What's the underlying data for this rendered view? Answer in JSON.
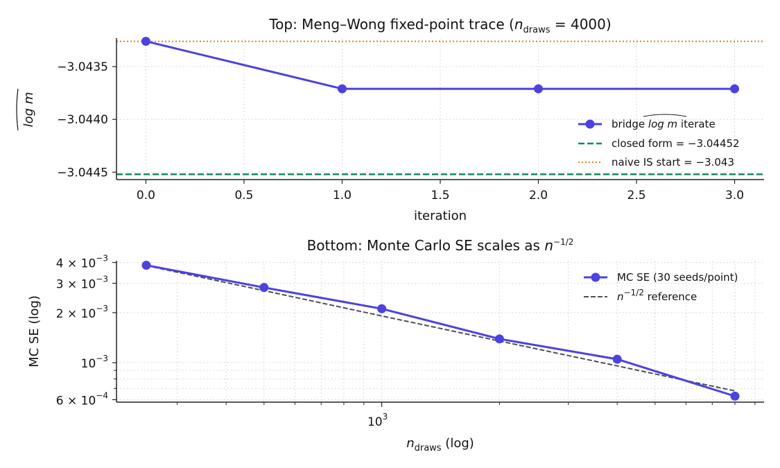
{
  "figure": {
    "colors": {
      "series": "#4b42e0",
      "closed_form": "#0f8a62",
      "naive": "#d4841c",
      "reference": "#4a4f58",
      "grid": "#d9d9d9",
      "axis": "#222222"
    }
  },
  "chart_data": [
    {
      "id": "top",
      "type": "line",
      "title": {
        "prefix": "Top: Meng–Wong fixed-point trace  (",
        "symbol": "n",
        "subscript": "draws",
        "suffix": " = 4000)"
      },
      "xlabel": "iteration",
      "ylabel": "log m",
      "xlim": [
        -0.15,
        3.15
      ],
      "ylim": [
        -3.04457,
        -3.04323
      ],
      "xticks": [
        0.0,
        0.5,
        1.0,
        1.5,
        2.0,
        2.5,
        3.0
      ],
      "xtick_labels": [
        "0.0",
        "0.5",
        "1.0",
        "1.5",
        "2.0",
        "2.5",
        "3.0"
      ],
      "yticks": [
        -3.0435,
        -3.044,
        -3.0445
      ],
      "ytick_labels": [
        "−3.0435",
        "−3.0440",
        "−3.0445"
      ],
      "grid": true,
      "legend_position": "center-right",
      "series": [
        {
          "name": "bridge log m iterate",
          "style": "solid-markers",
          "x": [
            0,
            1,
            2,
            3
          ],
          "y": [
            -3.04326,
            -3.04371,
            -3.04371,
            -3.04371
          ]
        }
      ],
      "hlines": [
        {
          "name": "closed form",
          "value": -3.04452,
          "label": "closed form  = −3.04452",
          "style": "dashed"
        },
        {
          "name": "naive IS start",
          "value": -3.04326,
          "label": "naive IS start  = −3.043",
          "style": "dotted"
        }
      ],
      "legend": {
        "series_label_prefix": "bridge ",
        "series_label_suffix": " iterate"
      }
    },
    {
      "id": "bottom",
      "type": "line",
      "title": {
        "prefix": "Bottom: Monte Carlo SE scales as ",
        "symbol": "n",
        "superscript": "−1/2"
      },
      "xlabel": {
        "symbol": "n",
        "subscript": "draws",
        "suffix": "  (log)"
      },
      "ylabel": "MC SE  (log)",
      "xscale": "log",
      "yscale": "log",
      "xlim": [
        220,
        4500
      ],
      "ylim": [
        0.00058,
        0.0041
      ],
      "xticks": [
        1000
      ],
      "xtick_labels": [
        {
          "base": "10",
          "exp": "3"
        }
      ],
      "yticks": [
        0.004,
        0.003,
        0.002,
        0.001,
        0.0006
      ],
      "ytick_labels": [
        {
          "mant": "4 × 10",
          "exp": "−3"
        },
        {
          "mant": "3 × 10",
          "exp": "−3"
        },
        {
          "mant": "2 × 10",
          "exp": "−3"
        },
        {
          "mant": "10",
          "exp": "−3"
        },
        {
          "mant": "6 × 10",
          "exp": "−4"
        }
      ],
      "grid": true,
      "legend_position": "upper-right",
      "series": [
        {
          "name": "MC SE  (30 seeds/point)",
          "style": "solid-markers",
          "x": [
            250,
            500,
            1000,
            2000,
            4000,
            8000
          ],
          "y": [
            0.00385,
            0.00283,
            0.00211,
            0.00139,
            0.00105,
            0.00063
          ]
        },
        {
          "name": "n−1/2 reference",
          "style": "dashed",
          "x": [
            250,
            500,
            1000,
            2000,
            4000,
            8000
          ],
          "y": [
            0.00383,
            0.00271,
            0.00191,
            0.00135,
            0.000957,
            0.000677
          ]
        }
      ],
      "legend": {
        "ref_symbol": "n",
        "ref_superscript": "−1/2",
        "ref_suffix": " reference"
      }
    }
  ]
}
